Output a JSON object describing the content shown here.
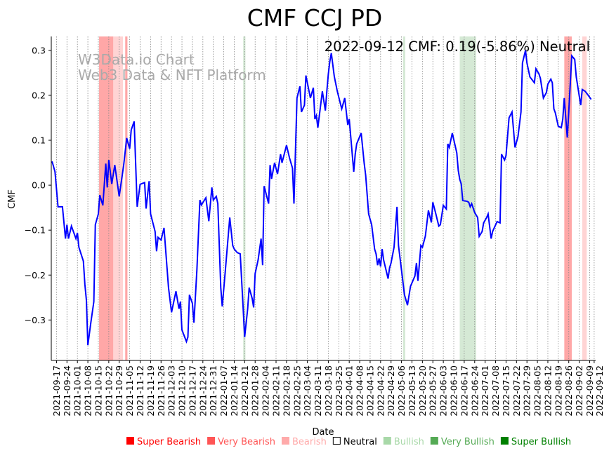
{
  "chart_data": {
    "type": "line",
    "title": "CMF CCJ PD",
    "xlabel": "Date",
    "ylabel": "CMF",
    "annotation": "2022-09-12 CMF: 0.19(-5.86%) Neutral",
    "watermark": [
      "W3Data.io Chart",
      "Web3 Data & NFT Platform"
    ],
    "x_unit": "days since 2021-09-17",
    "xlim": [
      -3.5,
      361
    ],
    "ylim": [
      -0.39,
      0.331
    ],
    "yticks": [
      -0.3,
      -0.2,
      -0.1,
      0.0,
      0.1,
      0.2,
      0.3
    ],
    "ytick_labels": [
      "−0.3",
      "−0.2",
      "−0.1",
      "0.0",
      "0.1",
      "0.2",
      "0.3"
    ],
    "xtick_labels": [
      "2021-09-17",
      "2021-09-24",
      "2021-10-01",
      "2021-10-08",
      "2021-10-15",
      "2021-10-22",
      "2021-10-29",
      "2021-11-05",
      "2021-11-12",
      "2021-11-19",
      "2021-11-26",
      "2021-12-03",
      "2021-12-10",
      "2021-12-17",
      "2021-12-24",
      "2021-12-31",
      "2022-01-07",
      "2022-01-14",
      "2022-01-21",
      "2022-01-28",
      "2022-02-04",
      "2022-02-11",
      "2022-02-18",
      "2022-02-25",
      "2022-03-04",
      "2022-03-11",
      "2022-03-18",
      "2022-03-25",
      "2022-04-01",
      "2022-04-08",
      "2022-04-15",
      "2022-04-22",
      "2022-04-29",
      "2022-05-06",
      "2022-05-13",
      "2022-05-20",
      "2022-05-27",
      "2022-06-03",
      "2022-06-10",
      "2022-06-17",
      "2022-06-24",
      "2022-07-01",
      "2022-07-08",
      "2022-07-15",
      "2022-07-22",
      "2022-07-29",
      "2022-08-05",
      "2022-08-12",
      "2022-08-19",
      "2022-08-26",
      "2022-09-02",
      "2022-09-09",
      "2022-09-12"
    ],
    "xtick_days": [
      0,
      7,
      14,
      21,
      28,
      35,
      42,
      49,
      56,
      63,
      70,
      77,
      84,
      91,
      98,
      105,
      112,
      119,
      126,
      133,
      140,
      147,
      154,
      161,
      168,
      175,
      182,
      189,
      196,
      203,
      210,
      217,
      224,
      231,
      238,
      245,
      252,
      259,
      266,
      273,
      280,
      287,
      294,
      301,
      308,
      315,
      322,
      329,
      336,
      343,
      350,
      357,
      360
    ],
    "series": [
      {
        "name": "CMF",
        "color": "#0000ff",
        "points": [
          [
            -3,
            0.053
          ],
          [
            -1,
            0.03
          ],
          [
            1,
            -0.048
          ],
          [
            4,
            -0.048
          ],
          [
            6,
            -0.119
          ],
          [
            7,
            -0.088
          ],
          [
            8,
            -0.119
          ],
          [
            10,
            -0.091
          ],
          [
            13,
            -0.119
          ],
          [
            14,
            -0.106
          ],
          [
            15,
            -0.138
          ],
          [
            18,
            -0.169
          ],
          [
            19,
            -0.22
          ],
          [
            20,
            -0.256
          ],
          [
            21,
            -0.356
          ],
          [
            23,
            -0.306
          ],
          [
            25,
            -0.259
          ],
          [
            26,
            -0.088
          ],
          [
            28,
            -0.064
          ],
          [
            29,
            -0.022
          ],
          [
            31,
            -0.045
          ],
          [
            33,
            0.048
          ],
          [
            34,
            -0.005
          ],
          [
            35,
            0.056
          ],
          [
            36,
            0.03
          ],
          [
            37,
            0.003
          ],
          [
            39,
            0.045
          ],
          [
            40,
            0.022
          ],
          [
            42,
            -0.025
          ],
          [
            45,
            0.045
          ],
          [
            47,
            0.105
          ],
          [
            49,
            0.081
          ],
          [
            50,
            0.123
          ],
          [
            52,
            0.142
          ],
          [
            54,
            -0.048
          ],
          [
            56,
            0.002
          ],
          [
            59,
            0.006
          ],
          [
            60,
            -0.052
          ],
          [
            62,
            0.009
          ],
          [
            63,
            -0.064
          ],
          [
            66,
            -0.103
          ],
          [
            67,
            -0.147
          ],
          [
            68,
            -0.116
          ],
          [
            70,
            -0.122
          ],
          [
            72,
            -0.095
          ],
          [
            75,
            -0.228
          ],
          [
            77,
            -0.283
          ],
          [
            80,
            -0.236
          ],
          [
            82,
            -0.275
          ],
          [
            83,
            -0.259
          ],
          [
            84,
            -0.322
          ],
          [
            87,
            -0.348
          ],
          [
            88,
            -0.338
          ],
          [
            89,
            -0.244
          ],
          [
            91,
            -0.263
          ],
          [
            92,
            -0.306
          ],
          [
            94,
            -0.189
          ],
          [
            96,
            -0.033
          ],
          [
            97,
            -0.044
          ],
          [
            100,
            -0.028
          ],
          [
            102,
            -0.08
          ],
          [
            104,
            -0.005
          ],
          [
            105,
            -0.033
          ],
          [
            107,
            -0.025
          ],
          [
            108,
            -0.041
          ],
          [
            110,
            -0.228
          ],
          [
            111,
            -0.27
          ],
          [
            113,
            -0.192
          ],
          [
            116,
            -0.072
          ],
          [
            118,
            -0.134
          ],
          [
            119,
            -0.142
          ],
          [
            121,
            -0.15
          ],
          [
            123,
            -0.153
          ],
          [
            125,
            -0.275
          ],
          [
            126,
            -0.338
          ],
          [
            128,
            -0.275
          ],
          [
            129,
            -0.228
          ],
          [
            131,
            -0.252
          ],
          [
            132,
            -0.272
          ],
          [
            133,
            -0.197
          ],
          [
            135,
            -0.166
          ],
          [
            137,
            -0.119
          ],
          [
            138,
            -0.178
          ],
          [
            139,
            -0.002
          ],
          [
            142,
            -0.041
          ],
          [
            143,
            0.045
          ],
          [
            144,
            0.014
          ],
          [
            146,
            0.05
          ],
          [
            148,
            0.025
          ],
          [
            150,
            0.069
          ],
          [
            151,
            0.05
          ],
          [
            154,
            0.089
          ],
          [
            156,
            0.061
          ],
          [
            158,
            0.038
          ],
          [
            159,
            -0.041
          ],
          [
            161,
            0.194
          ],
          [
            163,
            0.22
          ],
          [
            164,
            0.163
          ],
          [
            166,
            0.178
          ],
          [
            167,
            0.244
          ],
          [
            170,
            0.194
          ],
          [
            172,
            0.217
          ],
          [
            173,
            0.147
          ],
          [
            174,
            0.155
          ],
          [
            175,
            0.128
          ],
          [
            178,
            0.209
          ],
          [
            180,
            0.166
          ],
          [
            181,
            0.209
          ],
          [
            182,
            0.247
          ],
          [
            183,
            0.275
          ],
          [
            184,
            0.294
          ],
          [
            186,
            0.242
          ],
          [
            188,
            0.209
          ],
          [
            191,
            0.17
          ],
          [
            193,
            0.194
          ],
          [
            195,
            0.134
          ],
          [
            196,
            0.147
          ],
          [
            199,
            0.03
          ],
          [
            200,
            0.069
          ],
          [
            201,
            0.092
          ],
          [
            204,
            0.116
          ],
          [
            206,
            0.05
          ],
          [
            207,
            0.022
          ],
          [
            209,
            -0.064
          ],
          [
            211,
            -0.088
          ],
          [
            213,
            -0.142
          ],
          [
            214,
            -0.153
          ],
          [
            215,
            -0.178
          ],
          [
            216,
            -0.163
          ],
          [
            217,
            -0.181
          ],
          [
            218,
            -0.142
          ],
          [
            219,
            -0.166
          ],
          [
            222,
            -0.208
          ],
          [
            223,
            -0.184
          ],
          [
            224,
            -0.173
          ],
          [
            226,
            -0.138
          ],
          [
            228,
            -0.048
          ],
          [
            229,
            -0.134
          ],
          [
            231,
            -0.189
          ],
          [
            233,
            -0.244
          ],
          [
            235,
            -0.267
          ],
          [
            237,
            -0.225
          ],
          [
            240,
            -0.202
          ],
          [
            241,
            -0.173
          ],
          [
            242,
            -0.213
          ],
          [
            244,
            -0.134
          ],
          [
            245,
            -0.138
          ],
          [
            247,
            -0.113
          ],
          [
            249,
            -0.056
          ],
          [
            251,
            -0.083
          ],
          [
            252,
            -0.038
          ],
          [
            254,
            -0.064
          ],
          [
            256,
            -0.091
          ],
          [
            257,
            -0.088
          ],
          [
            259,
            -0.045
          ],
          [
            261,
            -0.053
          ],
          [
            262,
            0.092
          ],
          [
            263,
            0.084
          ],
          [
            265,
            0.116
          ],
          [
            268,
            0.072
          ],
          [
            269,
            0.033
          ],
          [
            270,
            0.013
          ],
          [
            271,
            0.003
          ],
          [
            272,
            -0.034
          ],
          [
            275,
            -0.036
          ],
          [
            276,
            -0.038
          ],
          [
            277,
            -0.048
          ],
          [
            278,
            -0.041
          ],
          [
            280,
            -0.061
          ],
          [
            282,
            -0.072
          ],
          [
            283,
            -0.114
          ],
          [
            285,
            -0.103
          ],
          [
            286,
            -0.084
          ],
          [
            288,
            -0.072
          ],
          [
            289,
            -0.064
          ],
          [
            291,
            -0.119
          ],
          [
            292,
            -0.103
          ],
          [
            295,
            -0.081
          ],
          [
            297,
            -0.084
          ],
          [
            298,
            0.069
          ],
          [
            300,
            0.056
          ],
          [
            301,
            0.066
          ],
          [
            303,
            0.15
          ],
          [
            305,
            0.163
          ],
          [
            307,
            0.084
          ],
          [
            309,
            0.108
          ],
          [
            311,
            0.163
          ],
          [
            312,
            0.272
          ],
          [
            314,
            0.3
          ],
          [
            315,
            0.272
          ],
          [
            317,
            0.241
          ],
          [
            320,
            0.228
          ],
          [
            321,
            0.259
          ],
          [
            323,
            0.248
          ],
          [
            324,
            0.238
          ],
          [
            326,
            0.194
          ],
          [
            328,
            0.206
          ],
          [
            329,
            0.225
          ],
          [
            331,
            0.236
          ],
          [
            332,
            0.228
          ],
          [
            333,
            0.17
          ],
          [
            334,
            0.161
          ],
          [
            336,
            0.131
          ],
          [
            338,
            0.128
          ],
          [
            339,
            0.147
          ],
          [
            340,
            0.194
          ],
          [
            342,
            0.106
          ],
          [
            343,
            0.163
          ],
          [
            345,
            0.288
          ],
          [
            347,
            0.28
          ],
          [
            348,
            0.241
          ],
          [
            351,
            0.178
          ],
          [
            352,
            0.213
          ],
          [
            354,
            0.209
          ],
          [
            356,
            0.2
          ],
          [
            358,
            0.191
          ]
        ]
      }
    ],
    "regions": [
      {
        "start": 28.5,
        "end": 38,
        "class": "Very Bearish"
      },
      {
        "start": 38,
        "end": 42,
        "class": "Bearish"
      },
      {
        "start": 42,
        "end": 44.5,
        "class": "Bearish"
      },
      {
        "start": 46,
        "end": 47.5,
        "class": "Very Bearish"
      },
      {
        "start": 125,
        "end": 126.5,
        "class": "Bullish"
      },
      {
        "start": 232,
        "end": 233.5,
        "class": "Bullish"
      },
      {
        "start": 270,
        "end": 281,
        "class": "Bullish"
      },
      {
        "start": 340,
        "end": 345,
        "class": "Very Bearish"
      },
      {
        "start": 352,
        "end": 355,
        "class": "Bearish"
      }
    ],
    "legend": {
      "placement": "bottom",
      "items": [
        {
          "label": "Super Bearish",
          "color": "#ff0000"
        },
        {
          "label": "Very Bearish",
          "color": "#ff5555"
        },
        {
          "label": "Bearish",
          "color": "#ffaaaa"
        },
        {
          "label": "Neutral",
          "color": "#000000"
        },
        {
          "label": "Bullish",
          "color": "#a8d8a8"
        },
        {
          "label": "Very Bullish",
          "color": "#55aa55"
        },
        {
          "label": "Super Bullish",
          "color": "#008000"
        }
      ]
    },
    "region_colors": {
      "Super Bearish": "rgba(255,0,0,0.6)",
      "Very Bearish": "rgba(255,80,80,0.5)",
      "Bearish": "rgba(255,160,160,0.45)",
      "Bullish": "rgba(150,200,150,0.4)",
      "Very Bullish": "rgba(80,170,80,0.5)",
      "Super Bullish": "rgba(0,128,0,0.6)"
    }
  }
}
